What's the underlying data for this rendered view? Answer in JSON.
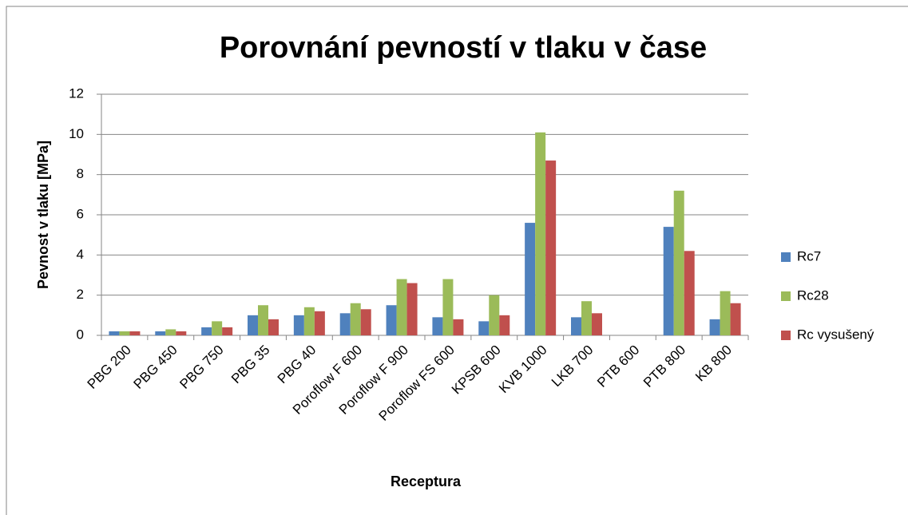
{
  "chart_data": {
    "type": "bar",
    "title": "Porovnání pevností v tlaku v čase",
    "x_label": "Receptura",
    "y_label": "Pevnost v tlaku [MPa]",
    "categories": [
      "PBG 200",
      "PBG 450",
      "PBG 750",
      "PBG 35",
      "PBG 40",
      "Poroflow F 600",
      "Poroflow F 900",
      "Poroflow FS 600",
      "KPSB 600",
      "KVB 1000",
      "LKB 700",
      "PTB 600",
      "PTB 800",
      "KB 800"
    ],
    "series": [
      {
        "name": "Rc7",
        "color": "#4f81bd",
        "values": [
          0.2,
          0.2,
          0.4,
          1.0,
          1.0,
          1.1,
          1.5,
          0.9,
          0.7,
          5.6,
          0.9,
          null,
          5.4,
          0.8
        ]
      },
      {
        "name": "Rc28",
        "color": "#9bbb59",
        "values": [
          0.2,
          0.3,
          0.7,
          1.5,
          1.4,
          1.6,
          2.8,
          2.8,
          2.0,
          10.1,
          1.7,
          null,
          7.2,
          2.2
        ]
      },
      {
        "name": "Rc vysušený",
        "color": "#c0504d",
        "values": [
          0.2,
          0.2,
          0.4,
          0.8,
          1.2,
          1.3,
          2.6,
          0.8,
          1.0,
          8.7,
          1.1,
          null,
          4.2,
          1.6
        ]
      }
    ],
    "ylim": [
      0,
      12
    ],
    "yticks": [
      0,
      2,
      4,
      6,
      8,
      10,
      12
    ],
    "grid": true,
    "legend": "right"
  }
}
